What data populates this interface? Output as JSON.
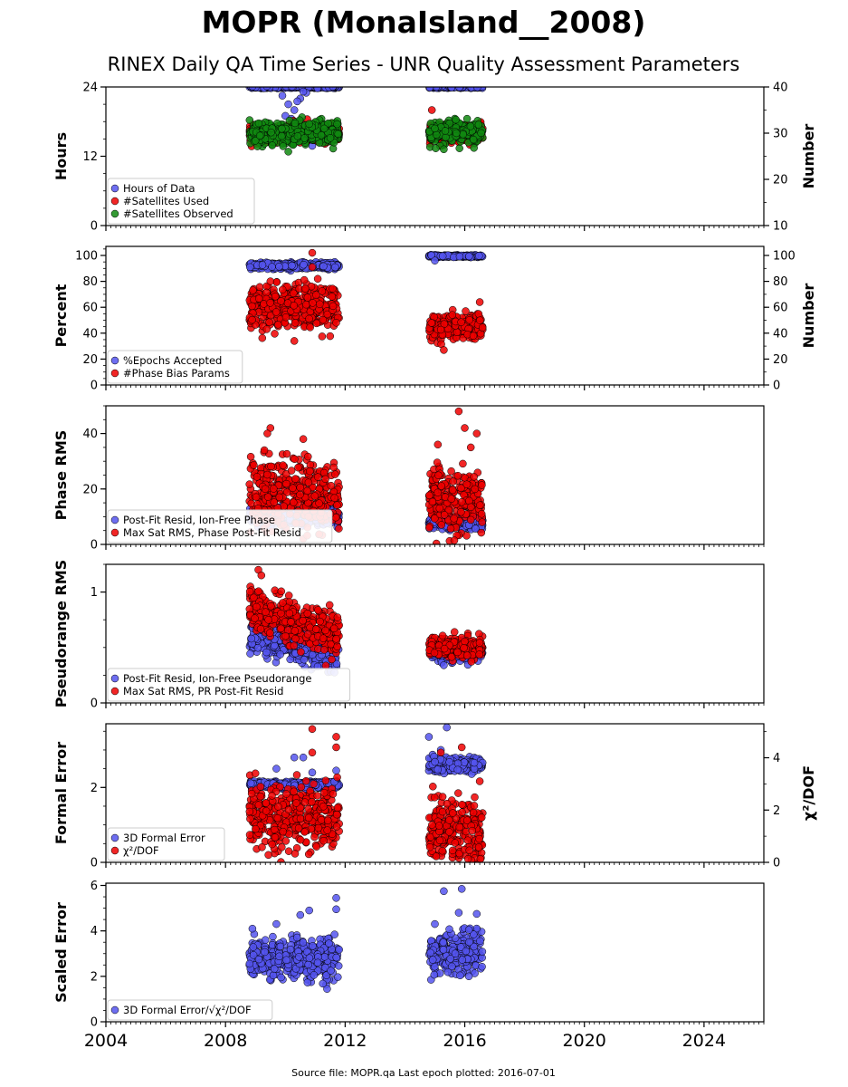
{
  "header": {
    "title": "MOPR (MonaIsland__2008)",
    "subtitle": "RINEX Daily QA Time Series - UNR Quality Assessment Parameters"
  },
  "footer": {
    "text": "Source file: MOPR.qa Last epoch plotted: 2016-07-01"
  },
  "colors": {
    "blue": "#5555ee",
    "red": "#ee0000",
    "green": "#118811",
    "edge": "#000000"
  },
  "chart_data": [
    {
      "type": "scatter",
      "ylabel": "Hours",
      "ylabel_right": "Number",
      "xlim": [
        2004,
        2026
      ],
      "ylim": [
        0,
        24
      ],
      "ylim_right": [
        10,
        40
      ],
      "yticks": [
        0,
        12,
        24
      ],
      "yticks_right": [
        10,
        20,
        30,
        40
      ],
      "legend": "lower-left",
      "series": [
        {
          "name": "Hours of Data",
          "axis": "left",
          "color": "blue",
          "segments": [
            {
              "x": [
                2008.8,
                2011.8
              ],
              "center": 24,
              "spread": 0.1,
              "outliers": [
                [
                  2010.1,
                  21
                ],
                [
                  2010.3,
                  20
                ],
                [
                  2010.5,
                  22
                ],
                [
                  2010.0,
                  19
                ],
                [
                  2010.7,
                  23
                ],
                [
                  2010.2,
                  18.5
                ],
                [
                  2009.9,
                  22.5
                ],
                [
                  2010.4,
                  21.5
                ],
                [
                  2010.6,
                  23.2
                ],
                [
                  2010.8,
                  17.5
                ],
                [
                  2010.9,
                  13.8
                ]
              ]
            },
            {
              "x": [
                2014.8,
                2016.6
              ],
              "center": 24,
              "spread": 0.1,
              "outliers": []
            }
          ]
        },
        {
          "name": "#Satellites Used",
          "axis": "right",
          "color": "red",
          "segments": [
            {
              "x": [
                2008.8,
                2011.8
              ],
              "center": 30,
              "spread": 1.0,
              "outliers": []
            },
            {
              "x": [
                2014.8,
                2016.6
              ],
              "center": 30,
              "spread": 1.0,
              "outliers": [
                [
                  2014.9,
                  35
                ],
                [
                  2015.3,
                  27.5
                ]
              ]
            }
          ]
        },
        {
          "name": "#Satellites Observed",
          "axis": "right",
          "color": "green",
          "segments": [
            {
              "x": [
                2008.8,
                2011.8
              ],
              "center": 30,
              "spread": 1.2,
              "outliers": [
                [
                  2010.1,
                  26
                ],
                [
                  2010.8,
                  32
                ],
                [
                  2011.3,
                  31
                ]
              ]
            },
            {
              "x": [
                2014.8,
                2016.6
              ],
              "center": 30,
              "spread": 1.2,
              "outliers": [
                [
                  2015.3,
                  26.5
                ],
                [
                  2015.0,
                  31
                ]
              ]
            }
          ]
        }
      ]
    },
    {
      "type": "scatter",
      "ylabel": "Percent",
      "ylabel_right": "Number",
      "xlim": [
        2004,
        2026
      ],
      "ylim": [
        0,
        107
      ],
      "ylim_right": [
        0,
        107
      ],
      "yticks": [
        0,
        20,
        40,
        60,
        80,
        100
      ],
      "yticks_right": [
        0,
        20,
        40,
        60,
        80,
        100
      ],
      "legend": "lower-left",
      "series": [
        {
          "name": "%Epochs Accepted",
          "axis": "left",
          "color": "blue",
          "segments": [
            {
              "x": [
                2008.8,
                2011.8
              ],
              "center": 92,
              "spread": 1.2,
              "outliers": []
            },
            {
              "x": [
                2014.8,
                2016.6
              ],
              "center": 99.5,
              "spread": 0.4,
              "outliers": [
                [
                  2015.0,
                  96
                ]
              ]
            }
          ]
        },
        {
          "name": "#Phase Bias Params",
          "axis": "right",
          "color": "red",
          "segments": [
            {
              "x": [
                2008.8,
                2011.8
              ],
              "center": 60,
              "spread": 9,
              "outliers": [
                [
                  2010.9,
                  102
                ],
                [
                  2010.3,
                  34
                ],
                [
                  2010.9,
                  91
                ],
                [
                  2009.5,
                  80
                ]
              ]
            },
            {
              "x": [
                2014.8,
                2016.6
              ],
              "center": 45,
              "spread": 5,
              "outliers": [
                [
                  2015.3,
                  27
                ],
                [
                  2016.5,
                  64
                ]
              ]
            }
          ]
        }
      ]
    },
    {
      "type": "scatter",
      "ylabel": "Phase RMS",
      "xlim": [
        2004,
        2026
      ],
      "ylim": [
        0,
        50
      ],
      "yticks": [
        0,
        20,
        40
      ],
      "legend": "lower-left",
      "series": [
        {
          "name": "Post-Fit Resid, Ion-Free Phase",
          "axis": "left",
          "color": "blue",
          "segments": [
            {
              "x": [
                2008.8,
                2011.8
              ],
              "center": 10,
              "spread": 1.5,
              "outliers": []
            },
            {
              "x": [
                2014.8,
                2016.6
              ],
              "center": 8,
              "spread": 1.2,
              "outliers": []
            }
          ]
        },
        {
          "name": "Max Sat RMS, Phase Post-Fit Resid",
          "axis": "left",
          "color": "red",
          "segments": [
            {
              "x": [
                2008.8,
                2011.8
              ],
              "center": 18,
              "spread": 6,
              "outliers": [
                [
                  2009.5,
                  42
                ],
                [
                  2009.4,
                  40
                ],
                [
                  2010.6,
                  38
                ],
                [
                  2009.3,
                  34
                ]
              ]
            },
            {
              "x": [
                2014.8,
                2016.6
              ],
              "center": 15,
              "spread": 6,
              "outliers": [
                [
                  2015.8,
                  48
                ],
                [
                  2016.0,
                  42
                ],
                [
                  2016.4,
                  40
                ],
                [
                  2016.2,
                  35
                ],
                [
                  2015.1,
                  36
                ]
              ]
            }
          ]
        }
      ]
    },
    {
      "type": "scatter",
      "ylabel": "Pseudorange RMS",
      "xlim": [
        2004,
        2026
      ],
      "ylim": [
        0,
        1.25
      ],
      "yticks": [
        0,
        1
      ],
      "legend": "lower-left",
      "series": [
        {
          "name": "Post-Fit Resid, Ion-Free Pseudorange",
          "axis": "left",
          "color": "blue",
          "segments": [
            {
              "x": [
                2008.8,
                2011.8
              ],
              "center": 0.62,
              "spread": 0.08,
              "trend": -0.2,
              "outliers": []
            },
            {
              "x": [
                2014.8,
                2016.6
              ],
              "center": 0.46,
              "spread": 0.04,
              "outliers": [
                [
                  2015.3,
                  0.34
                ]
              ]
            }
          ]
        },
        {
          "name": "Max Sat RMS, PR Post-Fit Resid",
          "axis": "left",
          "color": "red",
          "segments": [
            {
              "x": [
                2008.8,
                2011.8
              ],
              "center": 0.85,
              "spread": 0.1,
              "trend": -0.25,
              "outliers": [
                [
                  2009.1,
                  1.2
                ],
                [
                  2009.2,
                  1.15
                ]
              ]
            },
            {
              "x": [
                2014.8,
                2016.6
              ],
              "center": 0.5,
              "spread": 0.05,
              "outliers": []
            }
          ]
        }
      ]
    },
    {
      "type": "scatter",
      "ylabel": "Formal Error",
      "ylabel_right": "χ²/DOF",
      "xlim": [
        2004,
        2026
      ],
      "ylim": [
        0,
        3.7
      ],
      "ylim_right": [
        0,
        5.3
      ],
      "yticks": [
        0,
        2
      ],
      "yticks_right": [
        0,
        2,
        4
      ],
      "legend": "lower-left",
      "series": [
        {
          "name": "3D Formal Error",
          "axis": "left",
          "color": "blue",
          "segments": [
            {
              "x": [
                2008.8,
                2011.8
              ],
              "center": 2.08,
              "spread": 0.05,
              "outliers": [
                [
                  2010.6,
                  2.8
                ],
                [
                  2010.3,
                  2.8
                ],
                [
                  2009.7,
                  2.5
                ],
                [
                  2010.9,
                  2.4
                ],
                [
                  2011.7,
                  2.45
                ]
              ]
            },
            {
              "x": [
                2014.8,
                2016.6
              ],
              "center": 2.62,
              "spread": 0.1,
              "outliers": [
                [
                  2015.4,
                  3.6
                ],
                [
                  2014.8,
                  3.35
                ],
                [
                  2015.2,
                  3.0
                ]
              ]
            }
          ]
        },
        {
          "name": "χ²/DOF",
          "axis": "right",
          "color": "red",
          "segments": [
            {
              "x": [
                2008.8,
                2011.8
              ],
              "center": 1.8,
              "spread": 0.6,
              "outliers": [
                [
                  2010.9,
                  5.1
                ],
                [
                  2011.7,
                  4.8
                ],
                [
                  2011.7,
                  4.4
                ],
                [
                  2010.9,
                  4.2
                ],
                [
                  2009.0,
                  3.4
                ]
              ]
            },
            {
              "x": [
                2014.8,
                2016.6
              ],
              "center": 1.2,
              "spread": 0.6,
              "outliers": [
                [
                  2015.9,
                  4.4
                ],
                [
                  2015.2,
                  4.2
                ],
                [
                  2016.5,
                  3.1
                ]
              ]
            }
          ]
        }
      ]
    },
    {
      "type": "scatter",
      "ylabel": "Scaled Error",
      "xlim": [
        2004,
        2026
      ],
      "ylim": [
        0,
        6.1
      ],
      "yticks": [
        0,
        2,
        4,
        6
      ],
      "xticks": [
        2004,
        2008,
        2012,
        2016,
        2020,
        2024
      ],
      "legend": "lower-left",
      "series": [
        {
          "name": "3D Formal Error/√χ²/DOF",
          "axis": "left",
          "color": "blue",
          "segments": [
            {
              "x": [
                2008.8,
                2011.8
              ],
              "center": 2.8,
              "spread": 0.45,
              "outliers": [
                [
                  2011.7,
                  5.45
                ],
                [
                  2011.7,
                  4.95
                ],
                [
                  2010.8,
                  4.9
                ],
                [
                  2010.5,
                  4.7
                ],
                [
                  2008.9,
                  4.1
                ],
                [
                  2009.7,
                  4.3
                ]
              ]
            },
            {
              "x": [
                2014.8,
                2016.6
              ],
              "center": 3.0,
              "spread": 0.5,
              "outliers": [
                [
                  2015.9,
                  5.85
                ],
                [
                  2015.3,
                  5.75
                ],
                [
                  2015.8,
                  4.8
                ],
                [
                  2016.4,
                  4.75
                ],
                [
                  2015.0,
                  4.3
                ]
              ]
            }
          ]
        }
      ]
    }
  ]
}
